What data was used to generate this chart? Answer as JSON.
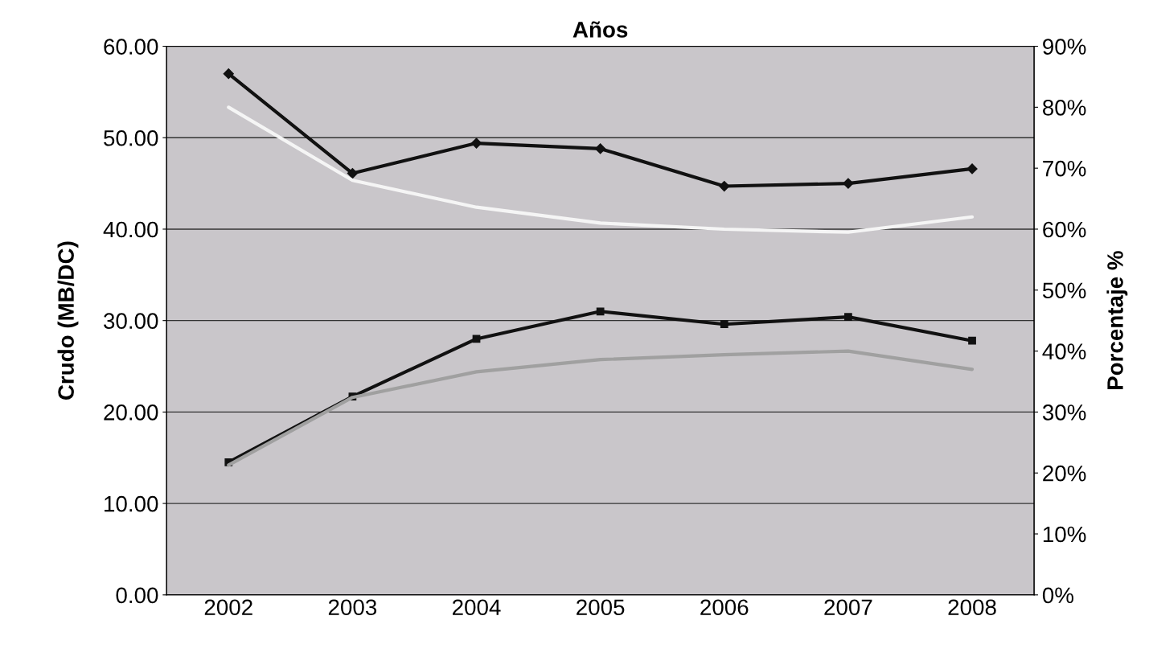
{
  "chart_data": {
    "type": "line",
    "title": "Años",
    "ylabel": "Crudo (MB/DC)",
    "y2label": "Porcentaje %",
    "categories": [
      "2002",
      "2003",
      "2004",
      "2005",
      "2006",
      "2007",
      "2008"
    ],
    "series": [
      {
        "color": "#111111",
        "marker": "diamond",
        "values": [
          57.0,
          46.1,
          49.4,
          48.8,
          44.7,
          45.0,
          46.6
        ]
      },
      {
        "color": "#f5f5f5",
        "axis": "y2",
        "marker": "none",
        "values": [
          80,
          68,
          63.6,
          61,
          60,
          59.5,
          62
        ]
      },
      {
        "color": "#111111",
        "marker": "square",
        "values": [
          14.5,
          21.7,
          28.0,
          31.0,
          29.6,
          30.4,
          27.8
        ]
      },
      {
        "color": "#a0a0a0",
        "axis": "y2",
        "marker": "none",
        "values": [
          21.3,
          32.4,
          36.6,
          38.6,
          39.4,
          40,
          37
        ]
      }
    ],
    "ylim": [
      0,
      60
    ],
    "yticks": [
      {
        "value": 0,
        "label": "0.00"
      },
      {
        "value": 10,
        "label": "10.00"
      },
      {
        "value": 20,
        "label": "20.00"
      },
      {
        "value": 30,
        "label": "30.00"
      },
      {
        "value": 40,
        "label": "40.00"
      },
      {
        "value": 50,
        "label": "50.00"
      },
      {
        "value": 60,
        "label": "60.00"
      }
    ],
    "y2lim": [
      0,
      90
    ],
    "y2ticks": [
      {
        "value": 0,
        "label": "0%"
      },
      {
        "value": 10,
        "label": "10%"
      },
      {
        "value": 20,
        "label": "20%"
      },
      {
        "value": 30,
        "label": "30%"
      },
      {
        "value": 40,
        "label": "40%"
      },
      {
        "value": 50,
        "label": "50%"
      },
      {
        "value": 60,
        "label": "60%"
      },
      {
        "value": 70,
        "label": "70%"
      },
      {
        "value": 80,
        "label": "80%"
      },
      {
        "value": 90,
        "label": "90%"
      }
    ],
    "grid": true,
    "line_style": "solid"
  }
}
